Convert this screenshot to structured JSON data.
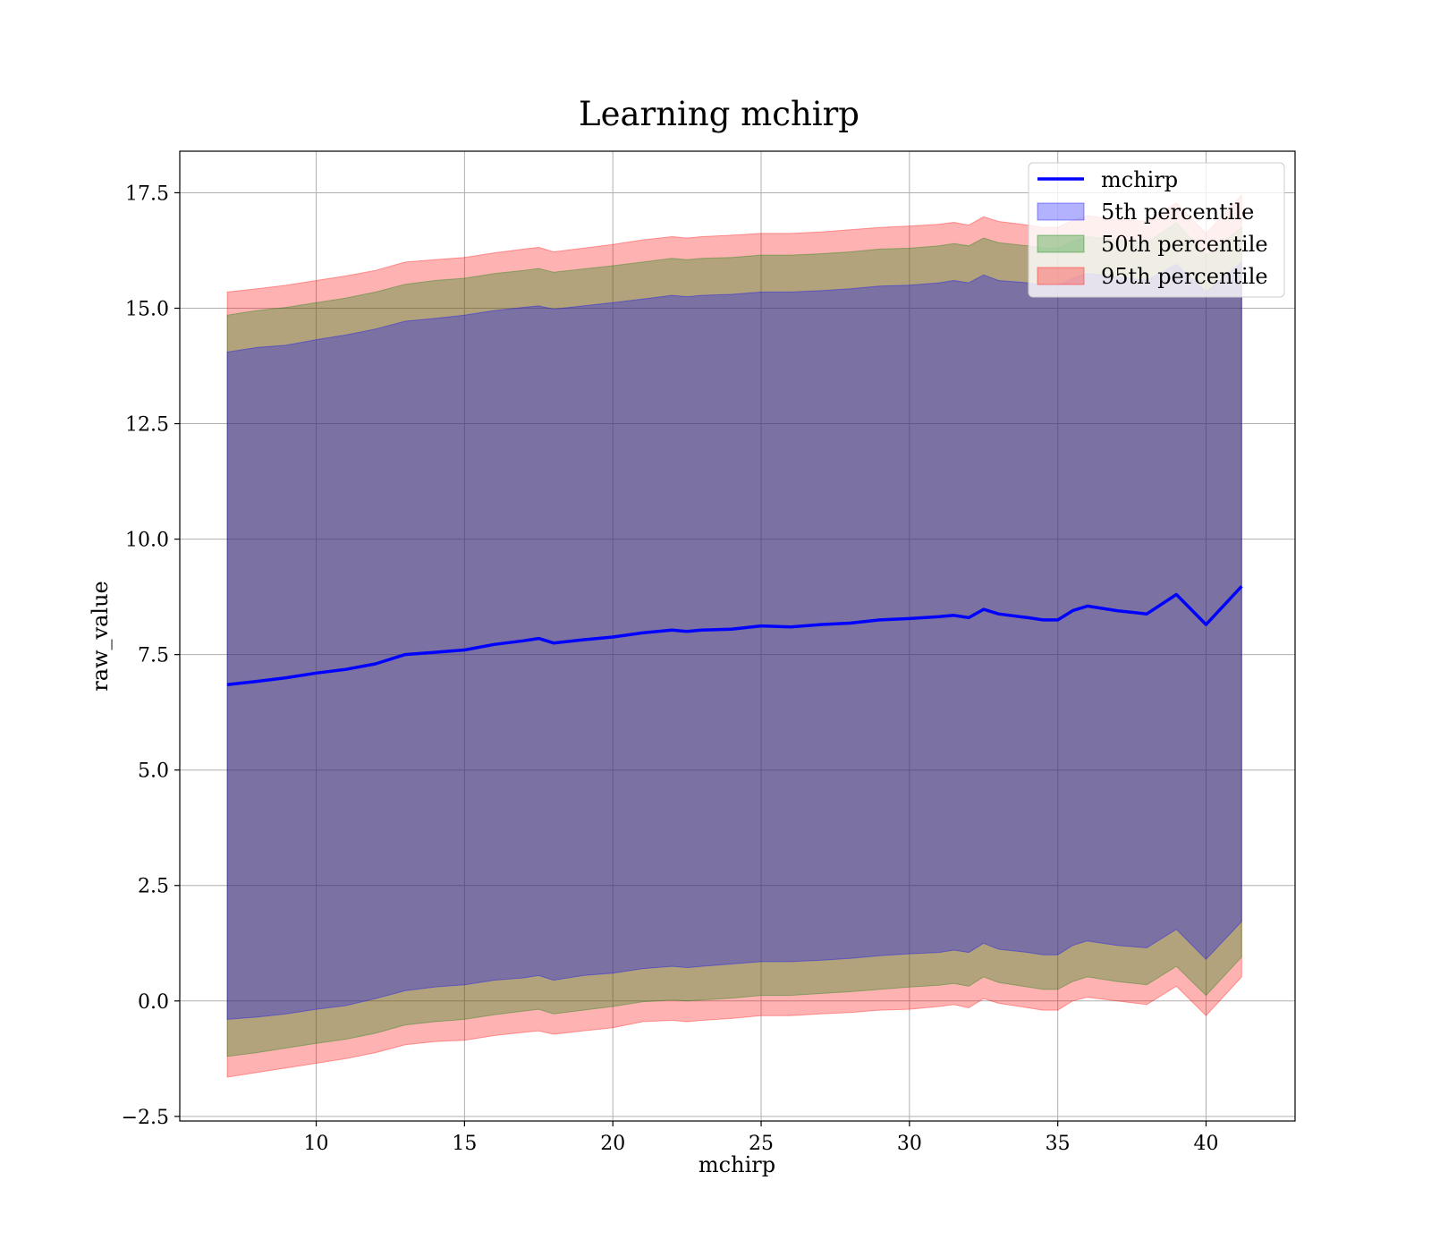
{
  "chart_data": {
    "type": "line",
    "title": "Learning mchirp",
    "xlabel": "mchirp",
    "ylabel": "raw_value",
    "xlim": [
      5.4,
      43.0
    ],
    "ylim": [
      -2.6,
      18.4
    ],
    "xticks": [
      10,
      15,
      20,
      25,
      30,
      35,
      40
    ],
    "yticks": [
      -2.5,
      0.0,
      2.5,
      5.0,
      7.5,
      10.0,
      12.5,
      15.0,
      17.5
    ],
    "xtick_labels": [
      "10",
      "15",
      "20",
      "25",
      "30",
      "35",
      "40"
    ],
    "ytick_labels": [
      "−2.5",
      "0.0",
      "2.5",
      "5.0",
      "7.5",
      "10.0",
      "12.5",
      "15.0",
      "17.5"
    ],
    "grid": true,
    "legend_position": "upper right",
    "colors": {
      "line": "#0000ff",
      "p5": "#0000ff",
      "p50": "#008000",
      "p95": "#ff0000",
      "grid": "#b0b0b0"
    },
    "x": [
      7.0,
      8.0,
      9.0,
      10.0,
      11.0,
      12.0,
      13.0,
      14.0,
      15.0,
      16.0,
      17.0,
      17.5,
      18.0,
      19.0,
      20.0,
      21.0,
      22.0,
      22.5,
      23.0,
      24.0,
      25.0,
      26.0,
      27.0,
      28.0,
      29.0,
      30.0,
      31.0,
      31.5,
      32.0,
      32.5,
      33.0,
      34.0,
      34.5,
      35.0,
      35.5,
      36.0,
      37.0,
      38.0,
      39.0,
      40.0,
      41.2
    ],
    "series": [
      {
        "name": "mchirp",
        "values": [
          6.85,
          6.92,
          7.0,
          7.1,
          7.18,
          7.3,
          7.5,
          7.55,
          7.6,
          7.72,
          7.8,
          7.85,
          7.75,
          7.82,
          7.88,
          7.97,
          8.03,
          8.0,
          8.03,
          8.05,
          8.12,
          8.1,
          8.15,
          8.18,
          8.25,
          8.28,
          8.32,
          8.35,
          8.3,
          8.48,
          8.38,
          8.3,
          8.25,
          8.25,
          8.45,
          8.55,
          8.45,
          8.38,
          8.8,
          8.15,
          8.98
        ]
      },
      {
        "name": "5th percentile",
        "lower": [
          -0.4,
          -0.35,
          -0.28,
          -0.18,
          -0.1,
          0.05,
          0.22,
          0.3,
          0.35,
          0.45,
          0.5,
          0.55,
          0.45,
          0.55,
          0.6,
          0.7,
          0.75,
          0.72,
          0.75,
          0.8,
          0.85,
          0.85,
          0.88,
          0.92,
          0.98,
          1.02,
          1.05,
          1.1,
          1.05,
          1.25,
          1.12,
          1.05,
          1.0,
          1.0,
          1.2,
          1.3,
          1.2,
          1.15,
          1.55,
          0.9,
          1.72
        ],
        "upper": [
          14.05,
          14.15,
          14.2,
          14.32,
          14.42,
          14.55,
          14.72,
          14.78,
          14.85,
          14.95,
          15.02,
          15.05,
          14.98,
          15.05,
          15.12,
          15.2,
          15.28,
          15.25,
          15.28,
          15.3,
          15.35,
          15.35,
          15.38,
          15.42,
          15.48,
          15.5,
          15.55,
          15.6,
          15.55,
          15.72,
          15.6,
          15.55,
          15.5,
          15.5,
          15.65,
          15.75,
          15.68,
          15.6,
          15.95,
          15.35,
          16.0
        ]
      },
      {
        "name": "50th percentile",
        "lower": [
          -1.2,
          -1.12,
          -1.02,
          -0.92,
          -0.83,
          -0.7,
          -0.52,
          -0.45,
          -0.4,
          -0.3,
          -0.22,
          -0.18,
          -0.28,
          -0.2,
          -0.12,
          -0.02,
          0.02,
          0.0,
          0.02,
          0.06,
          0.12,
          0.12,
          0.16,
          0.2,
          0.25,
          0.3,
          0.34,
          0.38,
          0.32,
          0.52,
          0.4,
          0.3,
          0.25,
          0.25,
          0.42,
          0.52,
          0.42,
          0.35,
          0.75,
          0.12,
          0.95
        ],
        "upper": [
          14.85,
          14.95,
          15.02,
          15.12,
          15.22,
          15.35,
          15.52,
          15.6,
          15.65,
          15.75,
          15.82,
          15.86,
          15.78,
          15.85,
          15.92,
          16.0,
          16.08,
          16.05,
          16.08,
          16.1,
          16.15,
          16.15,
          16.18,
          16.22,
          16.28,
          16.3,
          16.35,
          16.4,
          16.35,
          16.52,
          16.42,
          16.35,
          16.3,
          16.3,
          16.45,
          16.55,
          16.48,
          16.42,
          16.85,
          16.15,
          16.75
        ]
      },
      {
        "name": "95th percentile",
        "lower": [
          -1.65,
          -1.55,
          -1.45,
          -1.35,
          -1.25,
          -1.12,
          -0.95,
          -0.88,
          -0.85,
          -0.75,
          -0.68,
          -0.65,
          -0.72,
          -0.65,
          -0.58,
          -0.45,
          -0.42,
          -0.45,
          -0.42,
          -0.38,
          -0.32,
          -0.32,
          -0.28,
          -0.25,
          -0.2,
          -0.18,
          -0.12,
          -0.08,
          -0.15,
          0.05,
          -0.05,
          -0.15,
          -0.2,
          -0.2,
          0.0,
          0.08,
          0.0,
          -0.08,
          0.32,
          -0.32,
          0.52
        ],
        "upper": [
          15.35,
          15.42,
          15.5,
          15.6,
          15.7,
          15.82,
          16.0,
          16.05,
          16.1,
          16.2,
          16.28,
          16.32,
          16.22,
          16.3,
          16.38,
          16.48,
          16.55,
          16.52,
          16.55,
          16.58,
          16.62,
          16.62,
          16.65,
          16.7,
          16.75,
          16.78,
          16.82,
          16.86,
          16.8,
          16.98,
          16.88,
          16.8,
          16.75,
          16.75,
          16.9,
          17.0,
          16.92,
          16.88,
          17.28,
          16.62,
          17.45
        ]
      }
    ]
  }
}
